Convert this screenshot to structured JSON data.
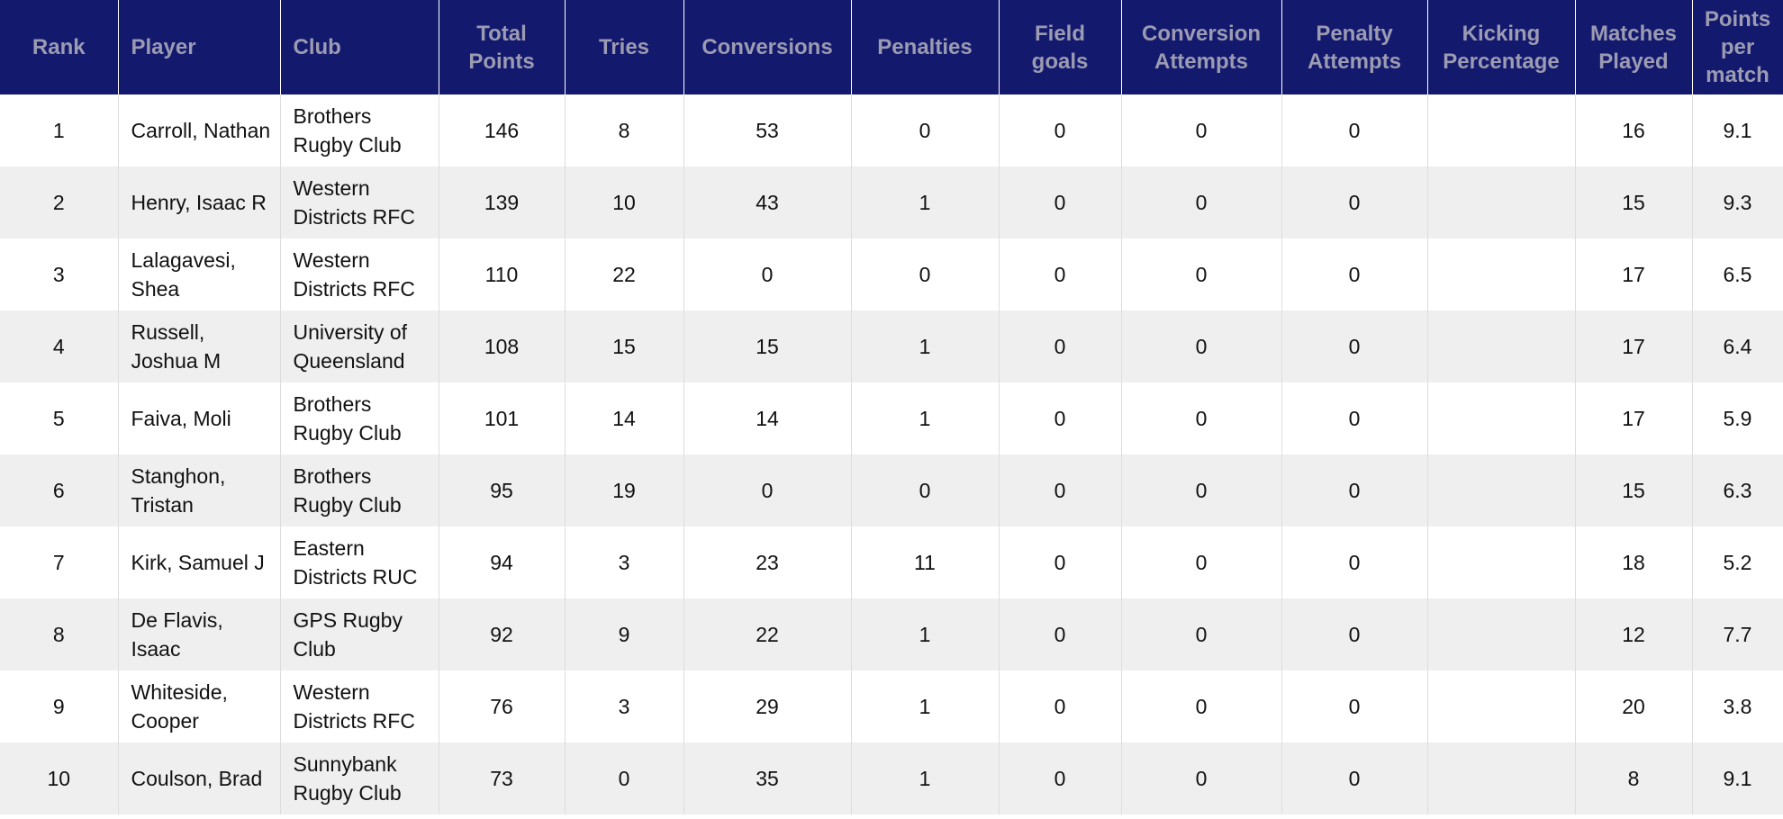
{
  "table": {
    "headers": [
      "Rank",
      "Player",
      "Club",
      "Total Points",
      "Tries",
      "Conversions",
      "Penalties",
      "Field goals",
      "Conversion Attempts",
      "Penalty Attempts",
      "Kicking Percentage",
      "Matches Played",
      "Points per match"
    ],
    "rows": [
      [
        "1",
        "Carroll, Nathan",
        "Brothers Rugby Club",
        "146",
        "8",
        "53",
        "0",
        "0",
        "0",
        "0",
        "",
        "16",
        "9.1"
      ],
      [
        "2",
        "Henry, Isaac R",
        "Western Districts RFC",
        "139",
        "10",
        "43",
        "1",
        "0",
        "0",
        "0",
        "",
        "15",
        "9.3"
      ],
      [
        "3",
        "Lalagavesi, Shea",
        "Western Districts RFC",
        "110",
        "22",
        "0",
        "0",
        "0",
        "0",
        "0",
        "",
        "17",
        "6.5"
      ],
      [
        "4",
        "Russell, Joshua M",
        "University of Queensland",
        "108",
        "15",
        "15",
        "1",
        "0",
        "0",
        "0",
        "",
        "17",
        "6.4"
      ],
      [
        "5",
        "Faiva, Moli",
        "Brothers Rugby Club",
        "101",
        "14",
        "14",
        "1",
        "0",
        "0",
        "0",
        "",
        "17",
        "5.9"
      ],
      [
        "6",
        "Stanghon, Tristan",
        "Brothers Rugby Club",
        "95",
        "19",
        "0",
        "0",
        "0",
        "0",
        "0",
        "",
        "15",
        "6.3"
      ],
      [
        "7",
        "Kirk, Samuel J",
        "Eastern Districts RUC",
        "94",
        "3",
        "23",
        "11",
        "0",
        "0",
        "0",
        "",
        "18",
        "5.2"
      ],
      [
        "8",
        "De Flavis, Isaac",
        "GPS Rugby Club",
        "92",
        "9",
        "22",
        "1",
        "0",
        "0",
        "0",
        "",
        "12",
        "7.7"
      ],
      [
        "9",
        "Whiteside, Cooper",
        "Western Districts RFC",
        "76",
        "3",
        "29",
        "1",
        "0",
        "0",
        "0",
        "",
        "20",
        "3.8"
      ],
      [
        "10",
        "Coulson, Brad",
        "Sunnybank Rugby Club",
        "73",
        "0",
        "35",
        "1",
        "0",
        "0",
        "0",
        "",
        "8",
        "9.1"
      ]
    ]
  }
}
